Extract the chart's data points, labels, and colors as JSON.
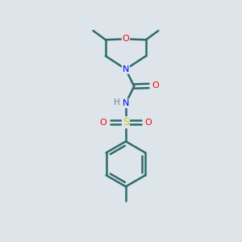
{
  "background_color": "#dde5eb",
  "atom_colors": {
    "O": "#ff0000",
    "N": "#0000ff",
    "S": "#cccc00",
    "C": "#000000",
    "H": "#708090"
  },
  "bond_color": "#2d6b6b",
  "bond_width": 1.8,
  "figsize": [
    3.0,
    3.0
  ],
  "dpi": 100
}
